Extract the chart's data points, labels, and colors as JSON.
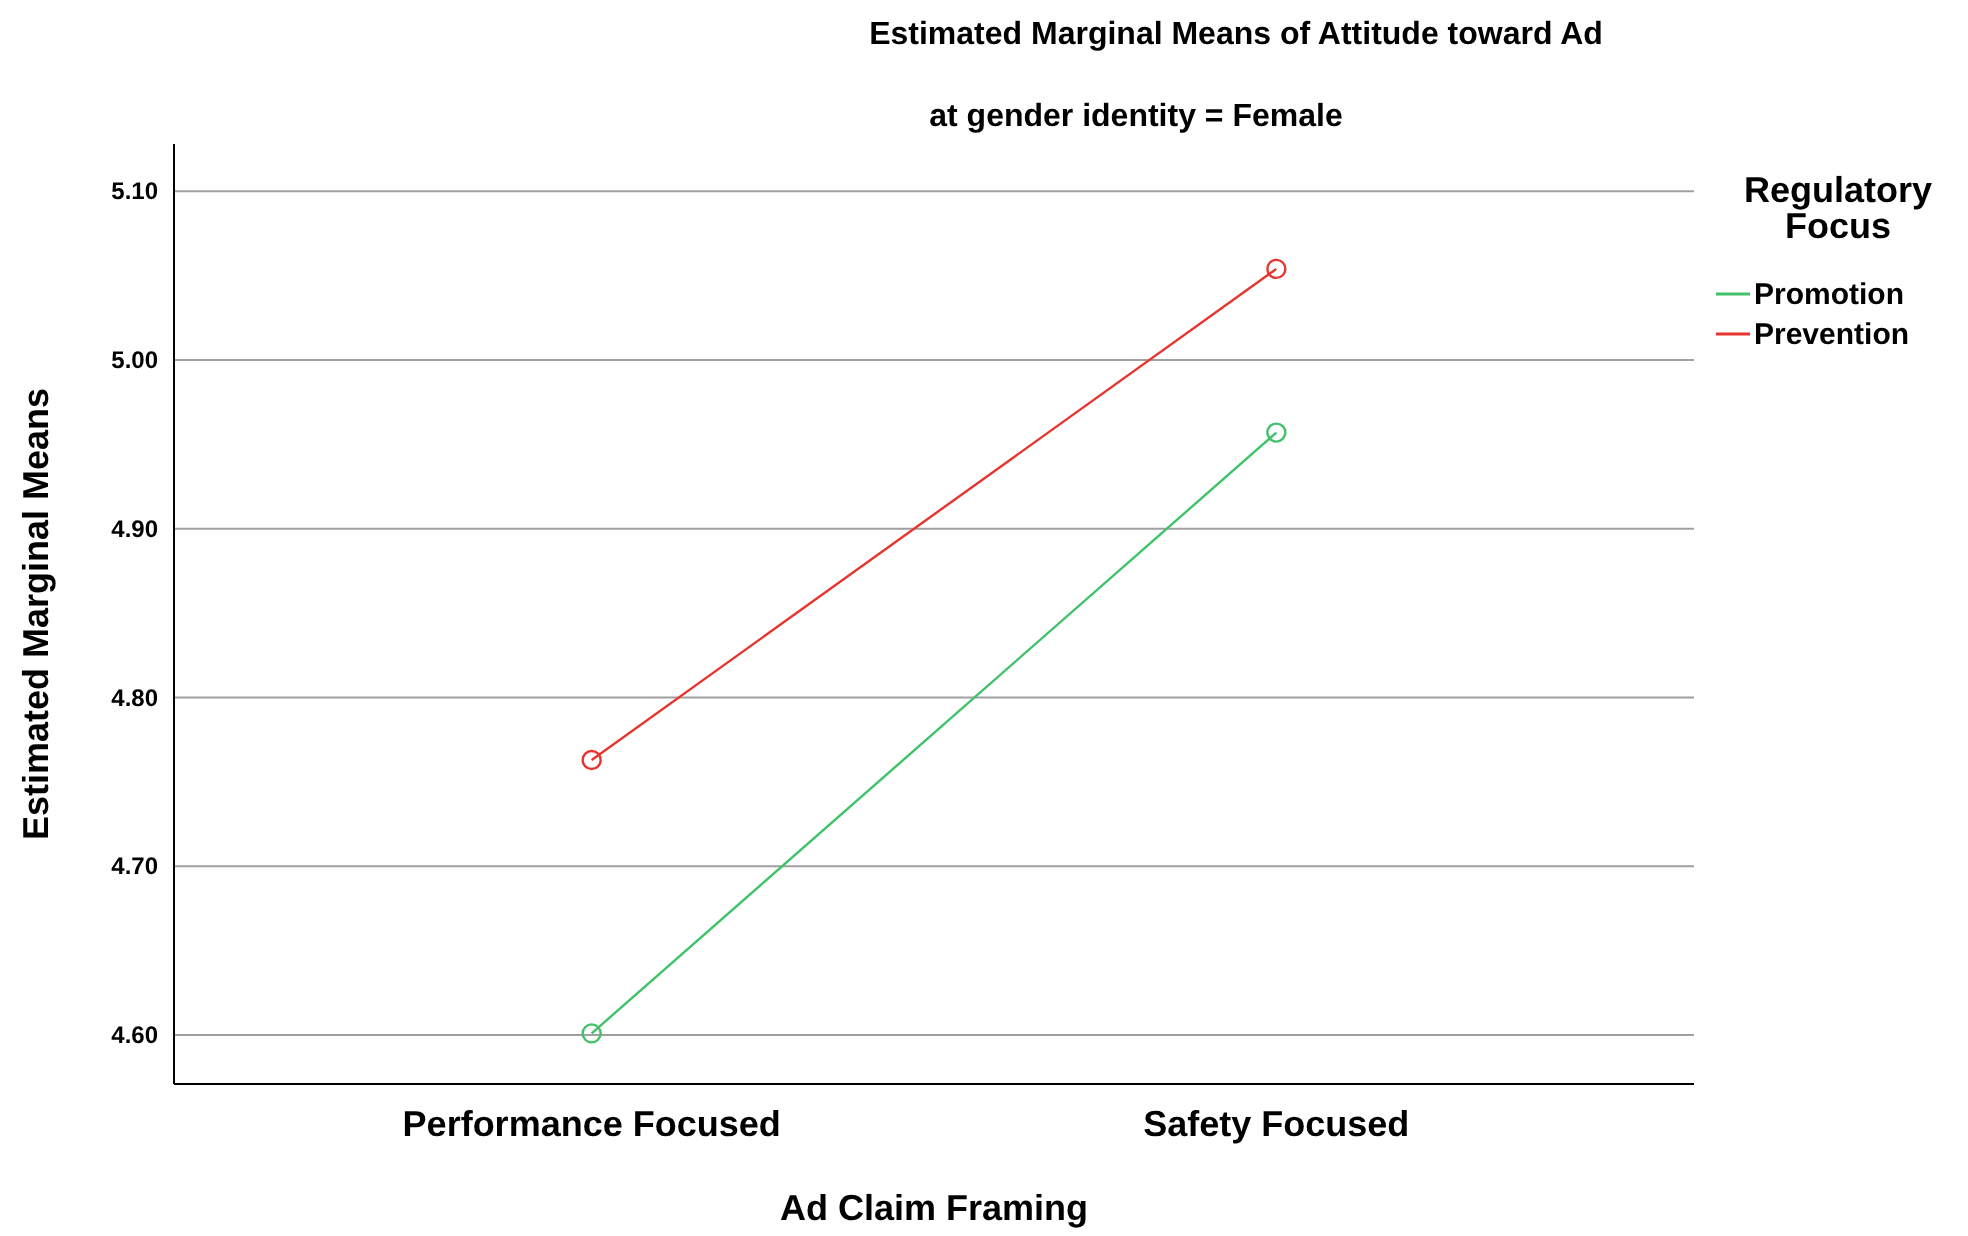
{
  "chart_data": {
    "type": "line",
    "title": "Estimated Marginal Means of Attitude toward Ad",
    "subtitle": "at gender identity = Female",
    "xlabel": "Ad Claim Framing",
    "ylabel": "Estimated Marginal Means",
    "legend_title": "Regulatory Focus",
    "categories": [
      "Performance Focused",
      "Safety Focused"
    ],
    "series": [
      {
        "name": "Promotion",
        "color": "#3fc26a",
        "values": [
          4.601,
          4.957
        ]
      },
      {
        "name": "Prevention",
        "color": "#e8342f",
        "values": [
          4.763,
          5.054
        ]
      }
    ],
    "ylim": [
      4.571,
      5.128
    ],
    "yticks": [
      {
        "value": 4.6,
        "label": "4.60"
      },
      {
        "value": 4.7,
        "label": "4.70"
      },
      {
        "value": 4.8,
        "label": "4.80"
      },
      {
        "value": 4.9,
        "label": "4.90"
      },
      {
        "value": 5.0,
        "label": "5.00"
      },
      {
        "value": 5.1,
        "label": "5.10"
      }
    ],
    "grid": "y",
    "legend": "right",
    "marker": "circle",
    "line_style": "solid"
  }
}
